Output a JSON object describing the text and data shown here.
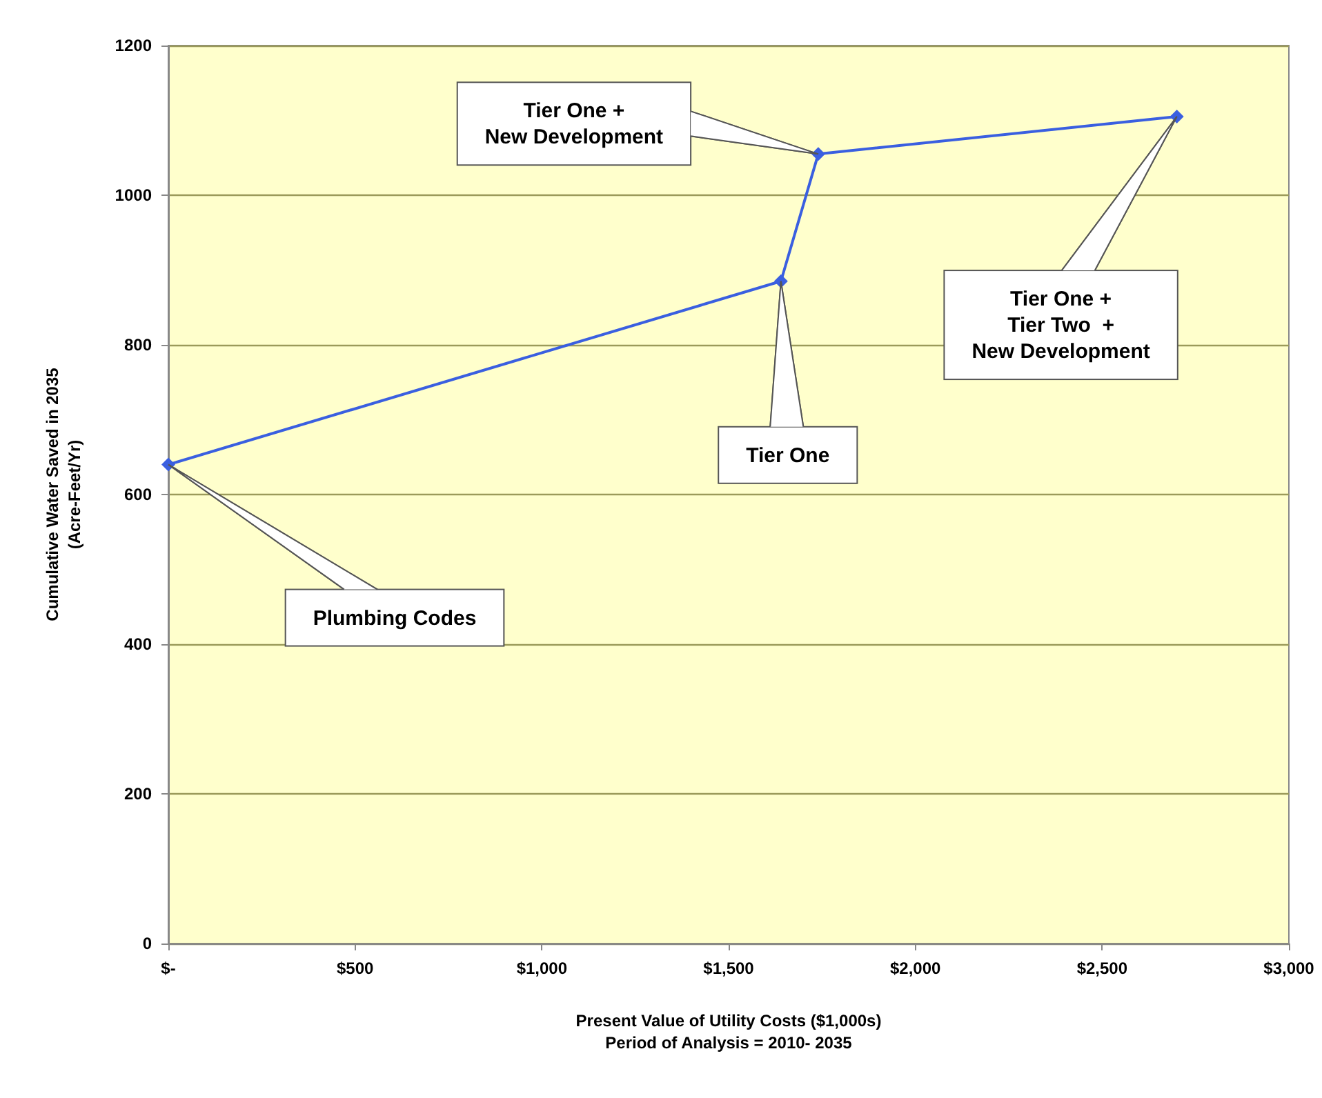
{
  "chart_data": {
    "type": "line",
    "xlabel": "Present Value of Utility Costs ($1,000s)\nPeriod of Analysis = 2010- 2035",
    "ylabel": "Cumulative Water Saved in 2035\n(Acre-Feet/Yr)",
    "x": [
      0,
      1640,
      1740,
      2700
    ],
    "series": [
      {
        "color": "#3a5fe0",
        "values": [
          640,
          885,
          1055,
          1105
        ]
      }
    ],
    "xlim": [
      0,
      3000
    ],
    "xticks": [
      {
        "value": 0,
        "label": "$-"
      },
      {
        "value": 500,
        "label": "$500"
      },
      {
        "value": 1000,
        "label": "$1,000"
      },
      {
        "value": 1500,
        "label": "$1,500"
      },
      {
        "value": 2000,
        "label": "$2,000"
      },
      {
        "value": 2500,
        "label": "$2,500"
      },
      {
        "value": 3000,
        "label": "$3,000"
      }
    ],
    "ylim": [
      0,
      1200
    ],
    "yticks": [
      0,
      200,
      400,
      600,
      800,
      1000,
      1200
    ],
    "grid": "y",
    "marker": "diamond",
    "line_style": "solid",
    "annotations": [
      "Plumbing Codes",
      "Tier One",
      "Tier One +\nNew Development",
      "Tier One +\nTier Two  +\nNew Development"
    ]
  }
}
